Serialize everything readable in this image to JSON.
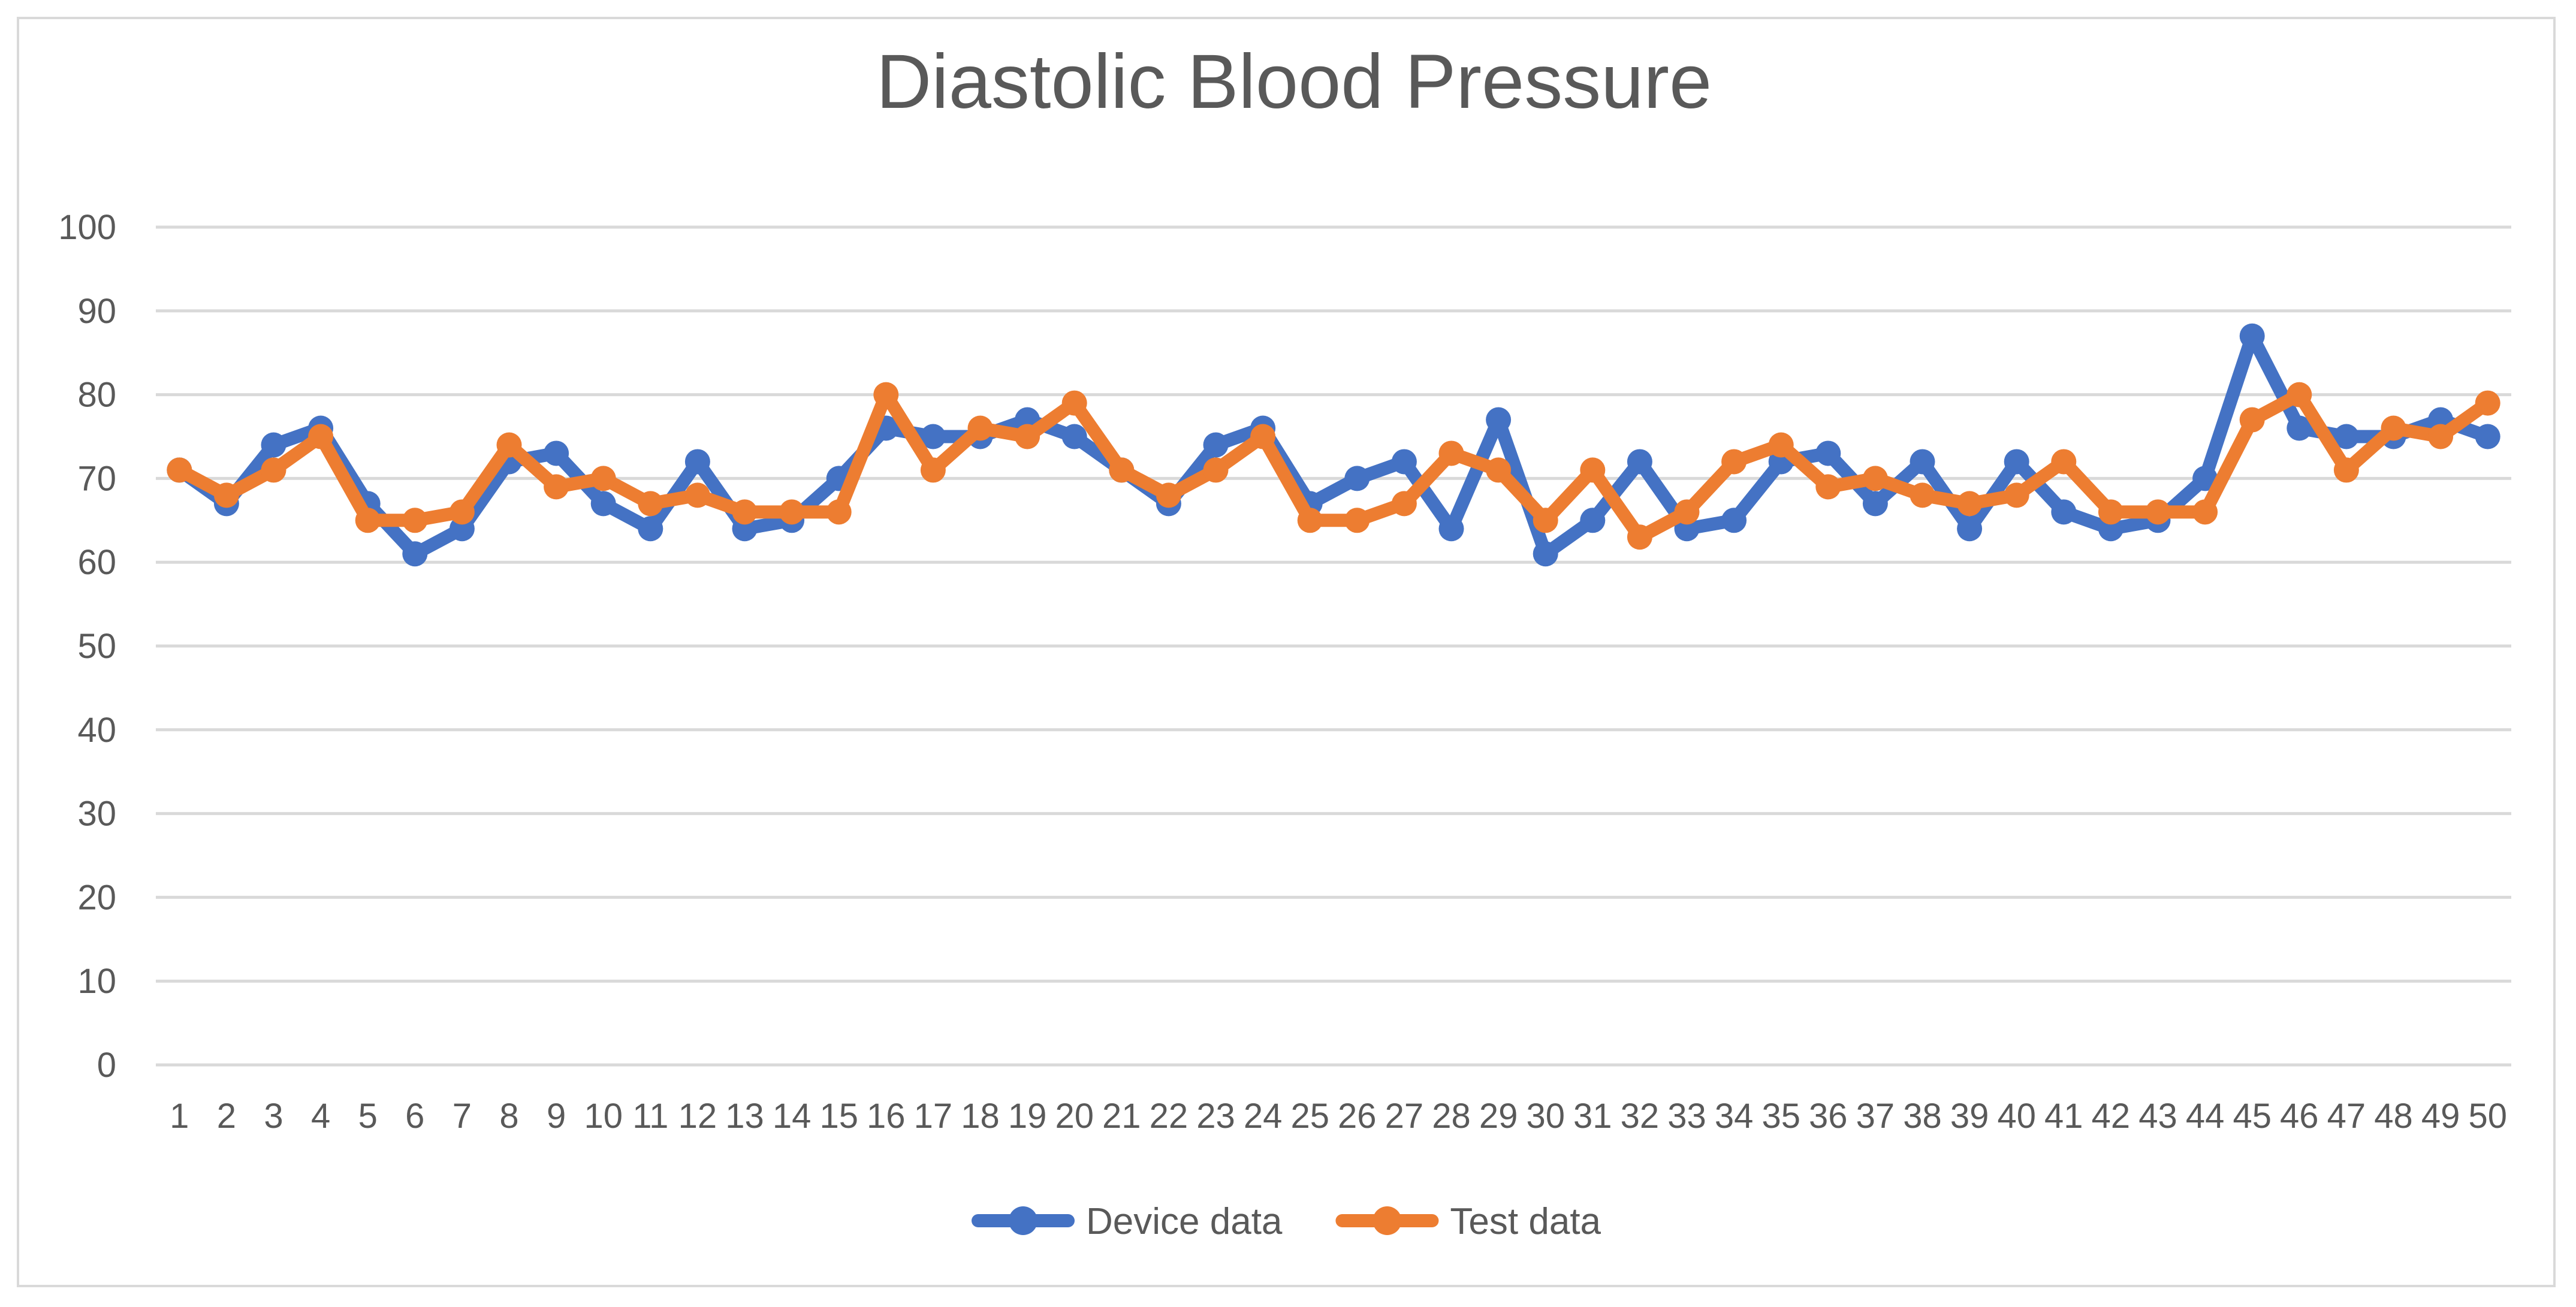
{
  "chart_data": {
    "type": "line",
    "title": "Diastolic Blood Pressure",
    "xlabel": "",
    "ylabel": "",
    "ylim": [
      0,
      100
    ],
    "yticks": [
      0,
      10,
      20,
      30,
      40,
      50,
      60,
      70,
      80,
      90,
      100
    ],
    "grid": true,
    "legend_position": "bottom",
    "categories": [
      "1",
      "2",
      "3",
      "4",
      "5",
      "6",
      "7",
      "8",
      "9",
      "10",
      "11",
      "12",
      "13",
      "14",
      "15",
      "16",
      "17",
      "18",
      "19",
      "20",
      "21",
      "22",
      "23",
      "24",
      "25",
      "26",
      "27",
      "28",
      "29",
      "30",
      "31",
      "32",
      "33",
      "34",
      "35",
      "36",
      "37",
      "38",
      "39",
      "40",
      "41",
      "42",
      "43",
      "44",
      "45",
      "46",
      "47",
      "48",
      "49",
      "50"
    ],
    "series": [
      {
        "name": "Device data",
        "color": "#4472c4",
        "values": [
          71,
          67,
          74,
          76,
          67,
          61,
          64,
          72,
          73,
          67,
          64,
          72,
          64,
          65,
          70,
          76,
          75,
          75,
          77,
          75,
          71,
          67,
          74,
          76,
          67,
          70,
          72,
          64,
          77,
          61,
          65,
          72,
          64,
          65,
          72,
          73,
          67,
          72,
          64,
          72,
          66,
          64,
          65,
          70,
          87,
          76,
          75,
          75,
          77,
          75
        ]
      },
      {
        "name": "Test data",
        "color": "#ed7d31",
        "values": [
          71,
          68,
          71,
          75,
          65,
          65,
          66,
          74,
          69,
          70,
          67,
          68,
          66,
          66,
          66,
          80,
          71,
          76,
          75,
          79,
          71,
          68,
          71,
          75,
          65,
          65,
          67,
          73,
          71,
          65,
          71,
          63,
          66,
          72,
          74,
          69,
          70,
          68,
          67,
          68,
          72,
          66,
          66,
          66,
          77,
          80,
          71,
          76,
          75,
          79
        ]
      }
    ]
  }
}
